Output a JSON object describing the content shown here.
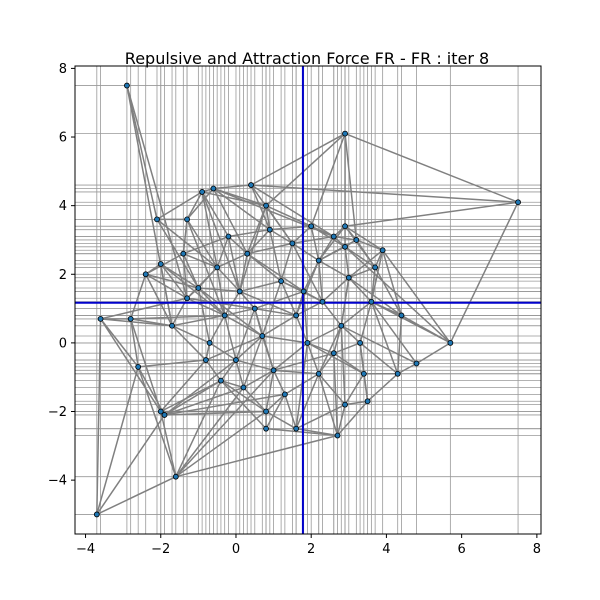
{
  "chart_data": {
    "type": "network",
    "title": "Repulsive and Attraction Force FR - FR : iter 8",
    "xlabel": "",
    "ylabel": "",
    "xlim": [
      -4.28,
      8.11
    ],
    "ylim": [
      -5.57,
      8.07
    ],
    "xticks": [
      -4,
      -2,
      0,
      2,
      4,
      6,
      8
    ],
    "yticks": [
      -4,
      -2,
      0,
      2,
      4,
      6,
      8
    ],
    "xtick_labels": [
      "−4",
      "−2",
      "0",
      "2",
      "4",
      "6",
      "8"
    ],
    "ytick_labels": [
      "−4",
      "−2",
      "0",
      "2",
      "4",
      "6",
      "8"
    ],
    "center": {
      "x": 1.78,
      "y": 1.17
    },
    "colors": {
      "edge": "#808080",
      "node": "#1f77b4",
      "node_edge": "#000000",
      "grid": "#999999",
      "center_line": "#0000cc"
    },
    "nodes": [
      {
        "id": 0,
        "x": -3.7,
        "y": -5.0
      },
      {
        "id": 1,
        "x": -2.9,
        "y": 7.5
      },
      {
        "id": 2,
        "x": -3.6,
        "y": 0.7
      },
      {
        "id": 3,
        "x": -2.8,
        "y": 0.7
      },
      {
        "id": 4,
        "x": -2.6,
        "y": -0.7
      },
      {
        "id": 5,
        "x": -2.4,
        "y": 2.0
      },
      {
        "id": 6,
        "x": -2.1,
        "y": 3.6
      },
      {
        "id": 7,
        "x": -2.0,
        "y": 2.3
      },
      {
        "id": 8,
        "x": -2.0,
        "y": -2.0
      },
      {
        "id": 9,
        "x": -1.9,
        "y": -2.1
      },
      {
        "id": 10,
        "x": -1.7,
        "y": 0.5
      },
      {
        "id": 11,
        "x": -1.6,
        "y": -3.9
      },
      {
        "id": 12,
        "x": -1.3,
        "y": 1.3
      },
      {
        "id": 13,
        "x": -1.3,
        "y": 3.6
      },
      {
        "id": 14,
        "x": -0.9,
        "y": 4.4
      },
      {
        "id": 15,
        "x": -0.6,
        "y": 4.5
      },
      {
        "id": 16,
        "x": -0.8,
        "y": -0.5
      },
      {
        "id": 17,
        "x": -0.4,
        "y": -1.1
      },
      {
        "id": 18,
        "x": 0.4,
        "y": 4.6
      },
      {
        "id": 19,
        "x": 0.8,
        "y": 4.0
      },
      {
        "id": 20,
        "x": 0.8,
        "y": -2.5
      },
      {
        "id": 21,
        "x": 0.8,
        "y": -2.0
      },
      {
        "id": 22,
        "x": 1.6,
        "y": -2.5
      },
      {
        "id": 23,
        "x": 2.7,
        "y": -2.7
      },
      {
        "id": 24,
        "x": 2.9,
        "y": 6.1
      },
      {
        "id": 25,
        "x": 2.6,
        "y": 3.1
      },
      {
        "id": 26,
        "x": 2.9,
        "y": 3.4
      },
      {
        "id": 27,
        "x": 3.2,
        "y": 3.0
      },
      {
        "id": 28,
        "x": 2.9,
        "y": -1.8
      },
      {
        "id": 29,
        "x": 3.5,
        "y": -1.7
      },
      {
        "id": 30,
        "x": 3.4,
        "y": -0.9
      },
      {
        "id": 31,
        "x": 3.9,
        "y": 2.7
      },
      {
        "id": 32,
        "x": 4.3,
        "y": -0.9
      },
      {
        "id": 33,
        "x": 4.4,
        "y": 0.8
      },
      {
        "id": 34,
        "x": 4.8,
        "y": -0.6
      },
      {
        "id": 35,
        "x": 5.7,
        "y": 0.0
      },
      {
        "id": 36,
        "x": 7.5,
        "y": 4.1
      },
      {
        "id": 37,
        "x": 0.1,
        "y": 1.5
      },
      {
        "id": 38,
        "x": 1.2,
        "y": 1.8
      },
      {
        "id": 39,
        "x": 2.3,
        "y": 1.2
      },
      {
        "id": 40,
        "x": 0.7,
        "y": 0.2
      },
      {
        "id": 41,
        "x": 1.9,
        "y": 0.0
      },
      {
        "id": 42,
        "x": -0.3,
        "y": 0.8
      },
      {
        "id": 43,
        "x": 2.8,
        "y": 0.5
      },
      {
        "id": 44,
        "x": 0.3,
        "y": 2.6
      },
      {
        "id": 45,
        "x": 1.5,
        "y": 2.9
      },
      {
        "id": 46,
        "x": 2.2,
        "y": 2.4
      },
      {
        "id": 47,
        "x": 3.0,
        "y": 1.9
      },
      {
        "id": 48,
        "x": -0.5,
        "y": 2.2
      },
      {
        "id": 49,
        "x": 1.0,
        "y": -0.8
      },
      {
        "id": 50,
        "x": 2.2,
        "y": -0.9
      },
      {
        "id": 51,
        "x": 3.3,
        "y": 0.0
      },
      {
        "id": 52,
        "x": -0.7,
        "y": 0.0
      },
      {
        "id": 53,
        "x": 0.0,
        "y": -0.5
      },
      {
        "id": 54,
        "x": 1.6,
        "y": 0.8
      },
      {
        "id": 55,
        "x": 0.5,
        "y": 1.0
      },
      {
        "id": 56,
        "x": -1.0,
        "y": 1.6
      },
      {
        "id": 57,
        "x": 3.6,
        "y": 1.2
      },
      {
        "id": 58,
        "x": 0.9,
        "y": 3.3
      },
      {
        "id": 59,
        "x": 2.6,
        "y": -0.3
      },
      {
        "id": 60,
        "x": -0.2,
        "y": 3.1
      },
      {
        "id": 61,
        "x": 1.3,
        "y": -1.5
      },
      {
        "id": 62,
        "x": 3.7,
        "y": 2.2
      },
      {
        "id": 63,
        "x": -1.4,
        "y": 2.6
      },
      {
        "id": 64,
        "x": 2.0,
        "y": 3.4
      },
      {
        "id": 65,
        "x": 1.8,
        "y": 1.5
      },
      {
        "id": 66,
        "x": 0.2,
        "y": -1.3
      },
      {
        "id": 67,
        "x": 2.9,
        "y": 2.8
      }
    ],
    "edges": [
      [
        1,
        6
      ],
      [
        1,
        12
      ],
      [
        1,
        10
      ],
      [
        0,
        2
      ],
      [
        0,
        11
      ],
      [
        0,
        4
      ],
      [
        0,
        9
      ],
      [
        2,
        3
      ],
      [
        2,
        4
      ],
      [
        2,
        8
      ],
      [
        2,
        12
      ],
      [
        3,
        5
      ],
      [
        3,
        4
      ],
      [
        3,
        8
      ],
      [
        3,
        10
      ],
      [
        4,
        11
      ],
      [
        4,
        16
      ],
      [
        4,
        9
      ],
      [
        5,
        12
      ],
      [
        5,
        7
      ],
      [
        5,
        63
      ],
      [
        5,
        10
      ],
      [
        6,
        14
      ],
      [
        6,
        13
      ],
      [
        6,
        56
      ],
      [
        7,
        12
      ],
      [
        7,
        56
      ],
      [
        7,
        10
      ],
      [
        8,
        9
      ],
      [
        8,
        17
      ],
      [
        8,
        16
      ],
      [
        8,
        11
      ],
      [
        8,
        21
      ],
      [
        9,
        21
      ],
      [
        9,
        17
      ],
      [
        9,
        66
      ],
      [
        9,
        61
      ],
      [
        10,
        16
      ],
      [
        10,
        12
      ],
      [
        10,
        42
      ],
      [
        11,
        17
      ],
      [
        11,
        23
      ],
      [
        11,
        49
      ],
      [
        11,
        21
      ],
      [
        12,
        56
      ],
      [
        12,
        48
      ],
      [
        12,
        42
      ],
      [
        13,
        15
      ],
      [
        13,
        14
      ],
      [
        13,
        63
      ],
      [
        13,
        48
      ],
      [
        14,
        15
      ],
      [
        14,
        19
      ],
      [
        14,
        60
      ],
      [
        14,
        48
      ],
      [
        15,
        18
      ],
      [
        15,
        19
      ],
      [
        15,
        44
      ],
      [
        15,
        25
      ],
      [
        16,
        17
      ],
      [
        16,
        52
      ],
      [
        16,
        53
      ],
      [
        17,
        66
      ],
      [
        17,
        21
      ],
      [
        17,
        20
      ],
      [
        18,
        24
      ],
      [
        18,
        36
      ],
      [
        18,
        58
      ],
      [
        18,
        45
      ],
      [
        19,
        58
      ],
      [
        19,
        44
      ],
      [
        19,
        64
      ],
      [
        19,
        45
      ],
      [
        20,
        23
      ],
      [
        20,
        21
      ],
      [
        20,
        61
      ],
      [
        21,
        22
      ],
      [
        21,
        61
      ],
      [
        21,
        66
      ],
      [
        22,
        23
      ],
      [
        22,
        28
      ],
      [
        22,
        61
      ],
      [
        22,
        50
      ],
      [
        23,
        28
      ],
      [
        23,
        50
      ],
      [
        23,
        29
      ],
      [
        24,
        36
      ],
      [
        24,
        27
      ],
      [
        24,
        19
      ],
      [
        24,
        26
      ],
      [
        25,
        26
      ],
      [
        25,
        27
      ],
      [
        25,
        64
      ],
      [
        25,
        46
      ],
      [
        26,
        27
      ],
      [
        26,
        31
      ],
      [
        26,
        67
      ],
      [
        27,
        31
      ],
      [
        27,
        62
      ],
      [
        27,
        67
      ],
      [
        28,
        29
      ],
      [
        28,
        30
      ],
      [
        28,
        50
      ],
      [
        29,
        30
      ],
      [
        29,
        32
      ],
      [
        30,
        32
      ],
      [
        30,
        51
      ],
      [
        30,
        59
      ],
      [
        31,
        33
      ],
      [
        31,
        62
      ],
      [
        31,
        35
      ],
      [
        32,
        34
      ],
      [
        32,
        33
      ],
      [
        32,
        51
      ],
      [
        33,
        35
      ],
      [
        33,
        57
      ],
      [
        33,
        62
      ],
      [
        34,
        35
      ],
      [
        34,
        57
      ],
      [
        35,
        36
      ],
      [
        35,
        57
      ],
      [
        35,
        25
      ],
      [
        36,
        26
      ],
      [
        37,
        38
      ],
      [
        37,
        42
      ],
      [
        37,
        44
      ],
      [
        37,
        55
      ],
      [
        37,
        48
      ],
      [
        37,
        56
      ],
      [
        38,
        45
      ],
      [
        38,
        65
      ],
      [
        38,
        44
      ],
      [
        38,
        54
      ],
      [
        38,
        39
      ],
      [
        39,
        47
      ],
      [
        39,
        43
      ],
      [
        39,
        65
      ],
      [
        39,
        54
      ],
      [
        39,
        46
      ],
      [
        40,
        55
      ],
      [
        40,
        49
      ],
      [
        40,
        53
      ],
      [
        40,
        41
      ],
      [
        40,
        54
      ],
      [
        41,
        59
      ],
      [
        41,
        50
      ],
      [
        41,
        49
      ],
      [
        41,
        54
      ],
      [
        41,
        43
      ],
      [
        42,
        52
      ],
      [
        42,
        55
      ],
      [
        42,
        56
      ],
      [
        42,
        53
      ],
      [
        43,
        51
      ],
      [
        43,
        57
      ],
      [
        43,
        59
      ],
      [
        43,
        47
      ],
      [
        44,
        58
      ],
      [
        44,
        60
      ],
      [
        44,
        45
      ],
      [
        44,
        48
      ],
      [
        45,
        64
      ],
      [
        45,
        46
      ],
      [
        45,
        58
      ],
      [
        46,
        67
      ],
      [
        46,
        47
      ],
      [
        46,
        64
      ],
      [
        46,
        65
      ],
      [
        47,
        57
      ],
      [
        47,
        62
      ],
      [
        47,
        67
      ],
      [
        48,
        60
      ],
      [
        48,
        63
      ],
      [
        48,
        56
      ],
      [
        49,
        61
      ],
      [
        49,
        53
      ],
      [
        49,
        66
      ],
      [
        49,
        50
      ],
      [
        50,
        59
      ],
      [
        50,
        61
      ],
      [
        51,
        57
      ],
      [
        51,
        59
      ],
      [
        52,
        53
      ],
      [
        52,
        56
      ],
      [
        52,
        16
      ],
      [
        53,
        66
      ],
      [
        53,
        55
      ],
      [
        54,
        55
      ],
      [
        54,
        65
      ],
      [
        55,
        65
      ],
      [
        55,
        37
      ],
      [
        56,
        63
      ],
      [
        57,
        62
      ],
      [
        58,
        64
      ],
      [
        58,
        60
      ],
      [
        60,
        63
      ],
      [
        62,
        67
      ],
      [
        37,
        54
      ],
      [
        38,
        40
      ],
      [
        42,
        40
      ],
      [
        44,
        65
      ],
      [
        45,
        39
      ],
      [
        46,
        54
      ],
      [
        47,
        43
      ],
      [
        48,
        42
      ],
      [
        49,
        59
      ],
      [
        50,
        43
      ],
      [
        55,
        49
      ],
      [
        56,
        40
      ],
      [
        58,
        38
      ],
      [
        60,
        37
      ],
      [
        63,
        12
      ],
      [
        64,
        67
      ],
      [
        65,
        41
      ],
      [
        66,
        40
      ],
      [
        57,
        31
      ],
      [
        62,
        26
      ],
      [
        14,
        37
      ],
      [
        13,
        42
      ],
      [
        6,
        48
      ],
      [
        7,
        42
      ],
      [
        5,
        56
      ],
      [
        10,
        52
      ],
      [
        16,
        40
      ],
      [
        17,
        53
      ],
      [
        21,
        49
      ],
      [
        22,
        41
      ],
      [
        23,
        59
      ],
      [
        28,
        43
      ],
      [
        29,
        51
      ],
      [
        30,
        41
      ],
      [
        32,
        57
      ],
      [
        33,
        47
      ],
      [
        34,
        43
      ],
      [
        31,
        47
      ],
      [
        27,
        46
      ],
      [
        25,
        45
      ],
      [
        19,
        37
      ],
      [
        15,
        58
      ],
      [
        18,
        25
      ],
      [
        24,
        64
      ],
      [
        26,
        46
      ],
      [
        12,
        55
      ],
      [
        3,
        42
      ],
      [
        2,
        10
      ],
      [
        9,
        53
      ],
      [
        11,
        66
      ]
    ]
  }
}
